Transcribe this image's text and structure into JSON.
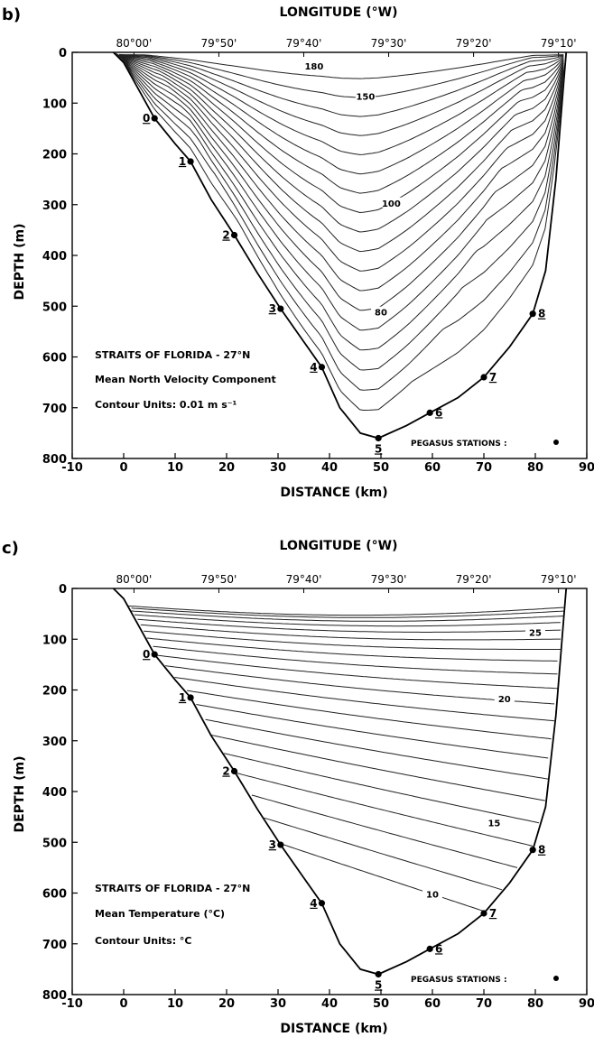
{
  "chart_data": [
    {
      "panel_label": "b)",
      "type": "contour",
      "top_axis_label": "LONGITUDE (°W)",
      "longitude_ticks": [
        {
          "label": "80°00'",
          "distance_km": 2
        },
        {
          "label": "79°50'",
          "distance_km": 18.5
        },
        {
          "label": "79°40'",
          "distance_km": 35
        },
        {
          "label": "79°30'",
          "distance_km": 51.5
        },
        {
          "label": "79°20'",
          "distance_km": 68
        },
        {
          "label": "79°10'",
          "distance_km": 84.5
        }
      ],
      "xlabel": "DISTANCE (km)",
      "ylabel": "DEPTH (m)",
      "xlim": [
        -10,
        90
      ],
      "ylim": [
        800,
        0
      ],
      "xticks": [
        -10,
        0,
        10,
        20,
        30,
        40,
        50,
        60,
        70,
        80,
        90
      ],
      "yticks": [
        0,
        100,
        200,
        300,
        400,
        500,
        600,
        700,
        800
      ],
      "annotation_lines": [
        "STRAITS OF FLORIDA - 27°N",
        "Mean North Velocity Component",
        "Contour Units: 0.01 m s⁻¹"
      ],
      "legend": "PEGASUS STATIONS :",
      "contour_labels": [
        {
          "text": "180",
          "x": 37,
          "y": 30
        },
        {
          "text": "150",
          "x": 47,
          "y": 90
        },
        {
          "text": "100",
          "x": 52,
          "y": 300
        },
        {
          "text": "80",
          "x": 50,
          "y": 515
        }
      ],
      "contour_levels_approx": [
        180,
        170,
        160,
        150,
        140,
        130,
        120,
        110,
        100,
        90,
        80,
        70,
        60,
        50,
        40,
        30,
        20,
        10
      ],
      "stations": [
        {
          "label": "0",
          "distance_km": 6,
          "depth_m": 130
        },
        {
          "label": "1",
          "distance_km": 13,
          "depth_m": 215
        },
        {
          "label": "2",
          "distance_km": 21.5,
          "depth_m": 360
        },
        {
          "label": "3",
          "distance_km": 30.5,
          "depth_m": 505
        },
        {
          "label": "4",
          "distance_km": 38.5,
          "depth_m": 620
        },
        {
          "label": "5",
          "distance_km": 49.5,
          "depth_m": 760
        },
        {
          "label": "6",
          "distance_km": 59.5,
          "depth_m": 710
        },
        {
          "label": "7",
          "distance_km": 70,
          "depth_m": 640
        },
        {
          "label": "8",
          "distance_km": 79.5,
          "depth_m": 515
        }
      ]
    },
    {
      "panel_label": "c)",
      "type": "contour",
      "top_axis_label": "LONGITUDE (°W)",
      "longitude_ticks": [
        {
          "label": "80°00'",
          "distance_km": 2
        },
        {
          "label": "79°50'",
          "distance_km": 18.5
        },
        {
          "label": "79°40'",
          "distance_km": 35
        },
        {
          "label": "79°30'",
          "distance_km": 51.5
        },
        {
          "label": "79°20'",
          "distance_km": 68
        },
        {
          "label": "79°10'",
          "distance_km": 84.5
        }
      ],
      "xlabel": "DISTANCE (km)",
      "ylabel": "DEPTH (m)",
      "xlim": [
        -10,
        90
      ],
      "ylim": [
        800,
        0
      ],
      "xticks": [
        -10,
        0,
        10,
        20,
        30,
        40,
        50,
        60,
        70,
        80,
        90
      ],
      "yticks": [
        0,
        100,
        200,
        300,
        400,
        500,
        600,
        700,
        800
      ],
      "annotation_lines": [
        "STRAITS OF FLORIDA - 27°N",
        "Mean Temperature (°C)",
        "Contour Units: °C"
      ],
      "legend": "PEGASUS STATIONS :",
      "contour_labels": [
        {
          "text": "25",
          "x": 80,
          "y": 90
        },
        {
          "text": "20",
          "x": 74,
          "y": 220
        },
        {
          "text": "15",
          "x": 72,
          "y": 465
        },
        {
          "text": "10",
          "x": 60,
          "y": 605
        }
      ],
      "contour_levels_approx": [
        27,
        26,
        25,
        24,
        23,
        22,
        21,
        20,
        19,
        18,
        17,
        16,
        15,
        14,
        13,
        12,
        11,
        10,
        9,
        8,
        7
      ],
      "stations": [
        {
          "label": "0",
          "distance_km": 6,
          "depth_m": 130
        },
        {
          "label": "1",
          "distance_km": 13,
          "depth_m": 215
        },
        {
          "label": "2",
          "distance_km": 21.5,
          "depth_m": 360
        },
        {
          "label": "3",
          "distance_km": 30.5,
          "depth_m": 505
        },
        {
          "label": "4",
          "distance_km": 38.5,
          "depth_m": 620
        },
        {
          "label": "5",
          "distance_km": 49.5,
          "depth_m": 760
        },
        {
          "label": "6",
          "distance_km": 59.5,
          "depth_m": 710
        },
        {
          "label": "7",
          "distance_km": 70,
          "depth_m": 640
        },
        {
          "label": "8",
          "distance_km": 79.5,
          "depth_m": 515
        }
      ]
    }
  ],
  "bottom_profile": [
    {
      "x": -2,
      "y": 0
    },
    {
      "x": 0,
      "y": 20
    },
    {
      "x": 3,
      "y": 75
    },
    {
      "x": 6,
      "y": 130
    },
    {
      "x": 10,
      "y": 180
    },
    {
      "x": 13,
      "y": 215
    },
    {
      "x": 17,
      "y": 290
    },
    {
      "x": 21.5,
      "y": 360
    },
    {
      "x": 26,
      "y": 435
    },
    {
      "x": 30.5,
      "y": 505
    },
    {
      "x": 35,
      "y": 570
    },
    {
      "x": 38.5,
      "y": 620
    },
    {
      "x": 42,
      "y": 700
    },
    {
      "x": 46,
      "y": 750
    },
    {
      "x": 49.5,
      "y": 760
    },
    {
      "x": 55,
      "y": 735
    },
    {
      "x": 59.5,
      "y": 710
    },
    {
      "x": 65,
      "y": 680
    },
    {
      "x": 70,
      "y": 640
    },
    {
      "x": 75,
      "y": 580
    },
    {
      "x": 79.5,
      "y": 515
    },
    {
      "x": 82,
      "y": 430
    },
    {
      "x": 84,
      "y": 250
    },
    {
      "x": 85.5,
      "y": 60
    },
    {
      "x": 86,
      "y": 0
    }
  ]
}
